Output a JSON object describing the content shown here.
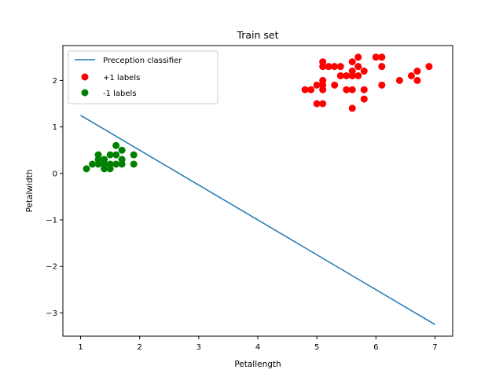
{
  "chart_data": {
    "type": "scatter",
    "title": "Train set",
    "xlabel": "Petallength",
    "ylabel": "Petalwidth",
    "xlim": [
      0.7,
      7.3
    ],
    "ylim": [
      -3.5,
      2.75
    ],
    "xticks": [
      1,
      2,
      3,
      4,
      5,
      6,
      7
    ],
    "yticks": [
      -3,
      -2,
      -1,
      0,
      1,
      2
    ],
    "grid": false,
    "legend_position": "top-left",
    "line": {
      "name": "Preception classifier",
      "color": "#1f77b4",
      "x": [
        1,
        7
      ],
      "y": [
        1.25,
        -3.25
      ]
    },
    "series": [
      {
        "name": "+1 labels",
        "color": "#ff0000",
        "points": [
          [
            4.8,
            1.8
          ],
          [
            4.9,
            1.8
          ],
          [
            5.0,
            1.9
          ],
          [
            5.0,
            1.5
          ],
          [
            5.1,
            2.4
          ],
          [
            5.1,
            2.3
          ],
          [
            5.1,
            2.0
          ],
          [
            5.1,
            1.9
          ],
          [
            5.1,
            1.8
          ],
          [
            5.1,
            1.5
          ],
          [
            5.2,
            2.3
          ],
          [
            5.3,
            2.3
          ],
          [
            5.3,
            1.9
          ],
          [
            5.4,
            2.3
          ],
          [
            5.4,
            2.1
          ],
          [
            5.5,
            2.1
          ],
          [
            5.5,
            1.8
          ],
          [
            5.6,
            2.4
          ],
          [
            5.6,
            2.2
          ],
          [
            5.6,
            2.1
          ],
          [
            5.6,
            1.8
          ],
          [
            5.6,
            1.4
          ],
          [
            5.7,
            2.5
          ],
          [
            5.7,
            2.3
          ],
          [
            5.7,
            2.1
          ],
          [
            5.8,
            2.2
          ],
          [
            5.8,
            1.8
          ],
          [
            5.8,
            1.6
          ],
          [
            6.0,
            2.5
          ],
          [
            6.1,
            2.5
          ],
          [
            6.1,
            2.3
          ],
          [
            6.1,
            1.9
          ],
          [
            6.4,
            2.0
          ],
          [
            6.6,
            2.1
          ],
          [
            6.7,
            2.2
          ],
          [
            6.7,
            2.0
          ],
          [
            6.9,
            2.3
          ]
        ]
      },
      {
        "name": "-1 labels",
        "color": "#008000",
        "points": [
          [
            1.1,
            0.1
          ],
          [
            1.2,
            0.2
          ],
          [
            1.3,
            0.2
          ],
          [
            1.3,
            0.3
          ],
          [
            1.3,
            0.4
          ],
          [
            1.4,
            0.1
          ],
          [
            1.4,
            0.2
          ],
          [
            1.4,
            0.3
          ],
          [
            1.5,
            0.1
          ],
          [
            1.5,
            0.2
          ],
          [
            1.5,
            0.4
          ],
          [
            1.6,
            0.2
          ],
          [
            1.6,
            0.4
          ],
          [
            1.6,
            0.6
          ],
          [
            1.7,
            0.2
          ],
          [
            1.7,
            0.3
          ],
          [
            1.7,
            0.5
          ],
          [
            1.9,
            0.2
          ],
          [
            1.9,
            0.4
          ]
        ]
      }
    ]
  }
}
